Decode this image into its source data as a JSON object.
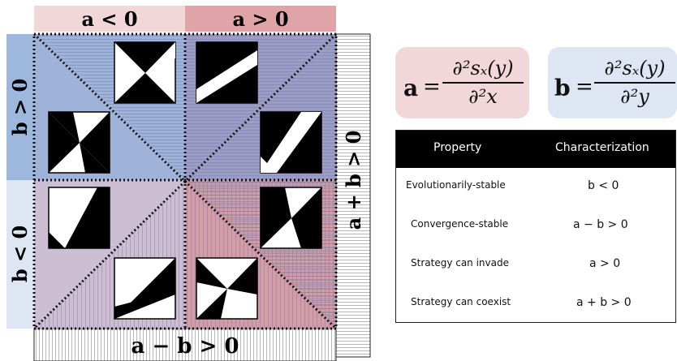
{
  "labels": {
    "a_neg": "a < 0",
    "a_pos": "a > 0",
    "b_pos": "b > 0",
    "b_neg": "b < 0",
    "a_plus_b": "a + b > 0",
    "a_minus_b": "a − b > 0"
  },
  "formulas": {
    "a": {
      "lhs": "a",
      "eq": "=",
      "numerator": "∂²sₓ(y)",
      "denominator": "∂²x"
    },
    "b": {
      "lhs": "b",
      "eq": "=",
      "numerator": "∂²sₓ(y)",
      "denominator": "∂²y"
    }
  },
  "table": {
    "headers": [
      "Property",
      "Characterization"
    ],
    "rows": [
      {
        "property": "Evolutionarily-stable",
        "characterization": "b < 0"
      },
      {
        "property": "Convergence-stable",
        "characterization": "a − b > 0"
      },
      {
        "property": "Strategy can invade",
        "characterization": "a > 0"
      },
      {
        "property": "Strategy can coexist",
        "characterization": "a + b > 0"
      }
    ]
  },
  "colors": {
    "pink_band": "#f2d7d9",
    "red_band": "#e0a3a8",
    "blue_band": "#9db8dc",
    "light_blue_band": "#dde6f2",
    "formula_a_bg": "#f2d7d9",
    "formula_b_bg": "#dde6f2"
  }
}
